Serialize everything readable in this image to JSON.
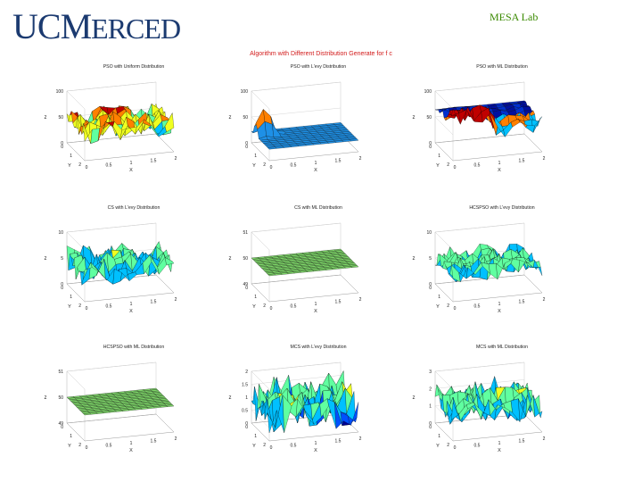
{
  "header": {
    "logo_text": "UCMERCED",
    "logo_parts": [
      "UC",
      "M",
      "ERCED"
    ],
    "lab_label": "MESA Lab",
    "figure_title": "Algorithm with Different Distribution Generate for f c"
  },
  "colors": {
    "logo": "#1b3a70",
    "lab": "#3a8a00",
    "figure_title": "#d21a1a",
    "flat_plane": "#7fd86a",
    "colormap": [
      "#00008f",
      "#0050ff",
      "#00c0ff",
      "#60ffa0",
      "#f0ff20",
      "#ff8000",
      "#c00000"
    ]
  },
  "chart_data": [
    {
      "type": "surface",
      "title": "PSO with Uniform Distribution",
      "zlabel": "z",
      "xlabel": "X",
      "ylabel": "Y",
      "zticks": [
        "100",
        "50",
        "0"
      ],
      "zlim": [
        0,
        100
      ],
      "xticks": [
        "0",
        "0.5",
        "1",
        "1.5",
        "2"
      ],
      "yticks": [
        "0",
        "1",
        "2"
      ],
      "surface": "noisy",
      "level": 50,
      "amplitude": 22,
      "palette": "hot"
    },
    {
      "type": "surface",
      "title": "PSO with L'evy Distribution",
      "zlabel": "z",
      "xlabel": "X",
      "ylabel": "Y",
      "zticks": [
        "100",
        "50",
        "0"
      ],
      "zlim": [
        0,
        100
      ],
      "xticks": [
        "0",
        "0.5",
        "1",
        "1.5",
        "2"
      ],
      "yticks": [
        "0",
        "1",
        "2"
      ],
      "surface": "smooth",
      "level": 22,
      "amplitude": 0,
      "palette": "blue"
    },
    {
      "type": "surface",
      "title": "PSO with ML Distribution",
      "zlabel": "z",
      "xlabel": "X",
      "ylabel": "Y",
      "zticks": [
        "100",
        "50",
        "0"
      ],
      "zlim": [
        0,
        100
      ],
      "xticks": [
        "0",
        "0.5",
        "1",
        "1.5",
        "2"
      ],
      "yticks": [
        "0",
        "1",
        "2"
      ],
      "surface": "ridge",
      "level": 60,
      "amplitude": 20,
      "palette": "mixed"
    },
    {
      "type": "surface",
      "title": "CS with L'evy Distribution",
      "zlabel": "z",
      "xlabel": "X",
      "ylabel": "Y",
      "zticks": [
        "10",
        "5",
        "0"
      ],
      "zlim": [
        0,
        10
      ],
      "xticks": [
        "0",
        "0.5",
        "1",
        "1.5",
        "2"
      ],
      "yticks": [
        "0",
        "1",
        "2"
      ],
      "surface": "noisy",
      "level": 5,
      "amplitude": 2.5,
      "palette": "cool"
    },
    {
      "type": "surface",
      "title": "CS with ML Distribution",
      "zlabel": "z",
      "xlabel": "X",
      "ylabel": "Y",
      "zticks": [
        "51",
        "50",
        "49"
      ],
      "zlim": [
        49,
        51
      ],
      "xticks": [
        "0",
        "0.5",
        "1",
        "1.5",
        "2"
      ],
      "yticks": [
        "0",
        "1",
        "2"
      ],
      "surface": "flat",
      "level": 50,
      "amplitude": 0,
      "palette": "flat"
    },
    {
      "type": "surface",
      "title": "HCSPSO with L'evy Distribution",
      "zlabel": "z",
      "xlabel": "X",
      "ylabel": "Y",
      "zticks": [
        "10",
        "5",
        "0"
      ],
      "zlim": [
        0,
        10
      ],
      "xticks": [
        "0",
        "0.5",
        "1",
        "1.5",
        "2"
      ],
      "yticks": [
        "0",
        "1",
        "2"
      ],
      "surface": "noisy",
      "level": 5,
      "amplitude": 2.2,
      "palette": "cool"
    },
    {
      "type": "surface",
      "title": "HCSPSO with ML Distribution",
      "zlabel": "z",
      "xlabel": "X",
      "ylabel": "Y",
      "zticks": [
        "51",
        "50",
        "49"
      ],
      "zlim": [
        49,
        51
      ],
      "xticks": [
        "0",
        "0.5",
        "1",
        "1.5",
        "2"
      ],
      "yticks": [
        "0",
        "1",
        "2"
      ],
      "surface": "flat",
      "level": 50,
      "amplitude": 0,
      "palette": "flat"
    },
    {
      "type": "surface",
      "title": "MCS with L'evy Distribution",
      "zlabel": "z",
      "xlabel": "X",
      "ylabel": "Y",
      "zticks": [
        "2",
        "1.5",
        "1",
        "0.5",
        "0"
      ],
      "zlim": [
        0,
        2
      ],
      "xticks": [
        "0",
        "0.5",
        "1",
        "1.5",
        "2"
      ],
      "yticks": [
        "0",
        "1",
        "2"
      ],
      "surface": "noisy",
      "level": 1,
      "amplitude": 0.8,
      "palette": "cool"
    },
    {
      "type": "surface",
      "title": "MCS with ML Distribution",
      "zlabel": "z",
      "xlabel": "X",
      "ylabel": "Y",
      "zticks": [
        "3",
        "2",
        "1",
        "0"
      ],
      "zlim": [
        0,
        3
      ],
      "xticks": [
        "0",
        "0.5",
        "1",
        "1.5",
        "2"
      ],
      "yticks": [
        "0",
        "1",
        "2"
      ],
      "surface": "noisy",
      "level": 1.5,
      "amplitude": 0.9,
      "palette": "cool"
    }
  ]
}
